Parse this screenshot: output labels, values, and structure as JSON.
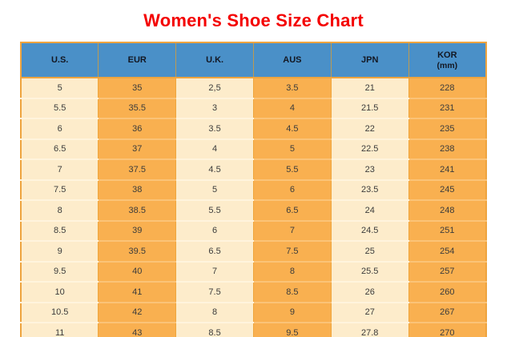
{
  "title": "Women's Shoe Size Chart",
  "colors": {
    "title_red": "#f40000",
    "header_blue": "#4a90c8",
    "header_text": "#131722",
    "column_light": "#fdeccb",
    "column_orange": "#f9b050",
    "grid_border": "#eea43f",
    "cell_text": "#3b3b3b"
  },
  "chart_data": {
    "type": "table",
    "title": "Women's Shoe Size Chart",
    "columns": [
      {
        "label": "U.S.",
        "sub": ""
      },
      {
        "label": "EUR",
        "sub": ""
      },
      {
        "label": "U.K.",
        "sub": ""
      },
      {
        "label": "AUS",
        "sub": ""
      },
      {
        "label": "JPN",
        "sub": ""
      },
      {
        "label": "KOR",
        "sub": "(mm)"
      }
    ],
    "rows": [
      [
        "5",
        "35",
        "2,5",
        "3.5",
        "21",
        "228"
      ],
      [
        "5.5",
        "35.5",
        "3",
        "4",
        "21.5",
        "231"
      ],
      [
        "6",
        "36",
        "3.5",
        "4.5",
        "22",
        "235"
      ],
      [
        "6.5",
        "37",
        "4",
        "5",
        "22.5",
        "238"
      ],
      [
        "7",
        "37.5",
        "4.5",
        "5.5",
        "23",
        "241"
      ],
      [
        "7.5",
        "38",
        "5",
        "6",
        "23.5",
        "245"
      ],
      [
        "8",
        "38.5",
        "5.5",
        "6.5",
        "24",
        "248"
      ],
      [
        "8.5",
        "39",
        "6",
        "7",
        "24.5",
        "251"
      ],
      [
        "9",
        "39.5",
        "6.5",
        "7.5",
        "25",
        "254"
      ],
      [
        "9.5",
        "40",
        "7",
        "8",
        "25.5",
        "257"
      ],
      [
        "10",
        "41",
        "7.5",
        "8.5",
        "26",
        "260"
      ],
      [
        "10.5",
        "42",
        "8",
        "9",
        "27",
        "267"
      ],
      [
        "11",
        "43",
        "8.5",
        "9.5",
        "27.8",
        "270"
      ]
    ]
  }
}
